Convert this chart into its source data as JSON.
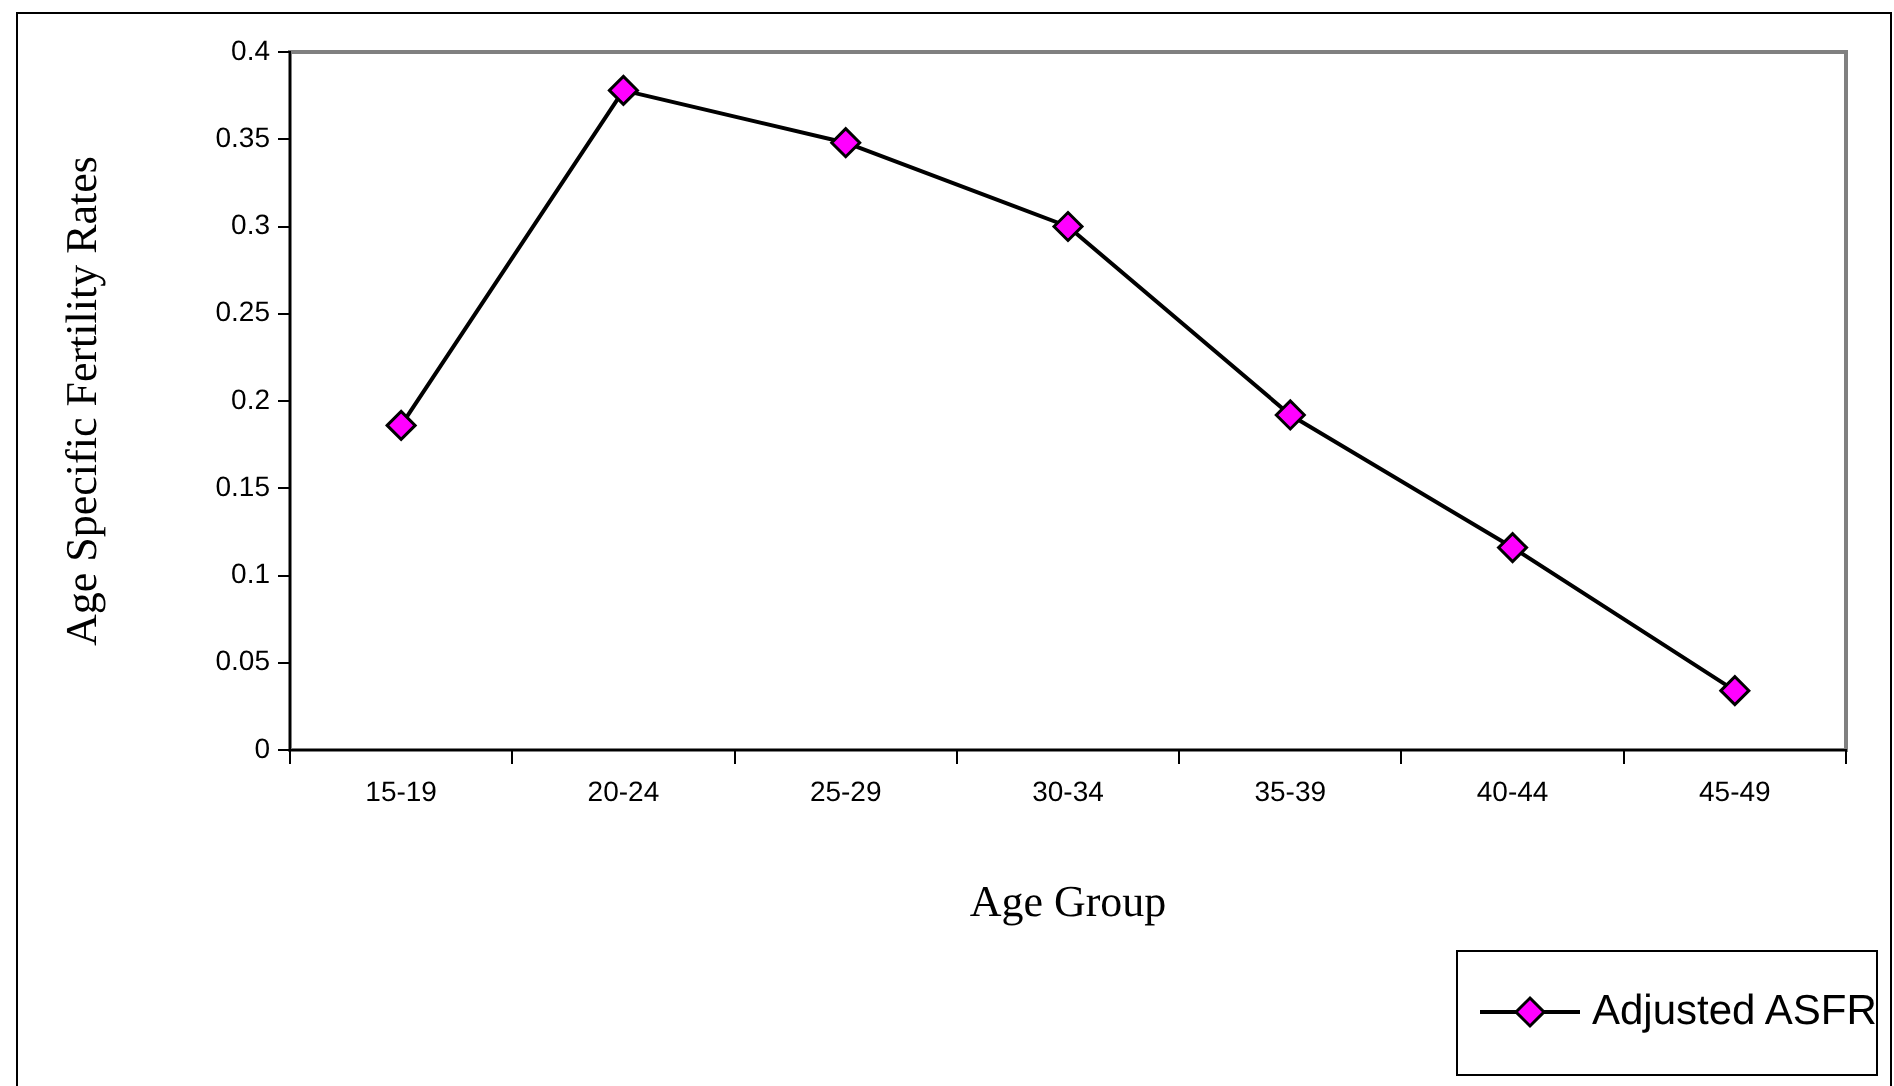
{
  "chart_data": {
    "type": "line",
    "xlabel": "Age Group",
    "ylabel": "Age Specific Fertility Rates",
    "categories": [
      "15-19",
      "20-24",
      "25-29",
      "30-34",
      "35-39",
      "40-44",
      "45-49"
    ],
    "series": [
      {
        "name": "Adjusted ASFR",
        "color": "#ff00ff",
        "values": [
          0.186,
          0.378,
          0.348,
          0.3,
          0.192,
          0.116,
          0.034
        ]
      }
    ],
    "ylim": [
      0,
      0.4
    ],
    "yticks": [
      0,
      0.05,
      0.1,
      0.15,
      0.2,
      0.25,
      0.3,
      0.35,
      0.4
    ],
    "grid": false,
    "legend": "bottom right",
    "marker": "diamond",
    "line_style": "solid"
  }
}
